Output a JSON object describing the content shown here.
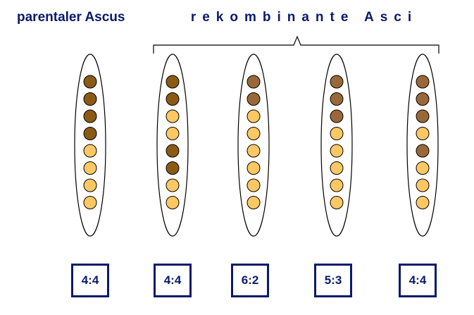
{
  "headings": {
    "parental": "parentaler Ascus",
    "recombinant": "rekombinante Asci"
  },
  "colors": {
    "heading": "#0a1a6b",
    "dark_spore": "#8b5a14",
    "medium_spore": "#9a6838",
    "light_spore": "#fdc863",
    "outline": "#000000"
  },
  "asci": [
    {
      "ratio": "4:4",
      "spores": [
        "dark",
        "dark",
        "dark",
        "dark",
        "light",
        "light",
        "light",
        "light"
      ]
    },
    {
      "ratio": "4:4",
      "spores": [
        "dark",
        "dark",
        "light",
        "light",
        "dark",
        "dark",
        "light",
        "light"
      ]
    },
    {
      "ratio": "6:2",
      "spores": [
        "medium",
        "medium",
        "light",
        "light",
        "light",
        "light",
        "light",
        "light"
      ]
    },
    {
      "ratio": "5:3",
      "spores": [
        "medium",
        "medium",
        "medium",
        "light",
        "light",
        "light",
        "light",
        "light"
      ]
    },
    {
      "ratio": "4:4",
      "spores": [
        "medium",
        "medium",
        "medium",
        "light",
        "medium",
        "light",
        "light",
        "light"
      ]
    }
  ]
}
